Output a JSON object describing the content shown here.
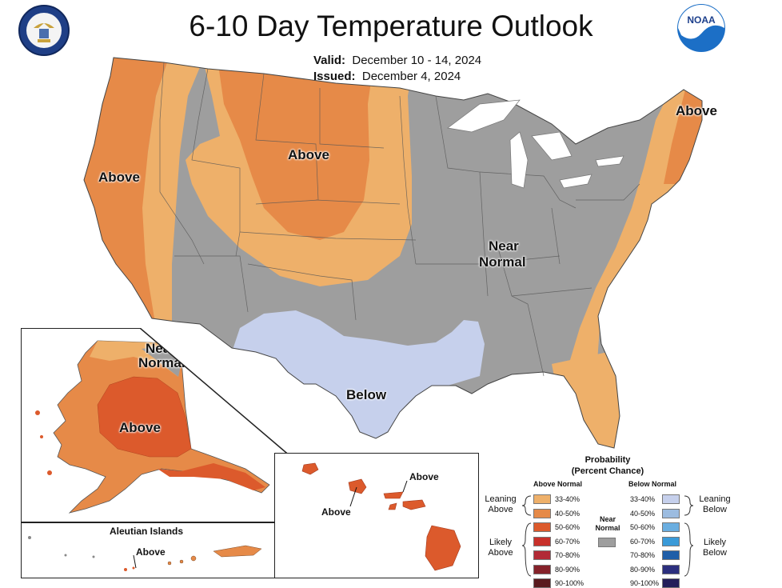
{
  "title": "6-10 Day Temperature Outlook",
  "valid": {
    "label": "Valid:",
    "value": "December 10 - 14, 2024"
  },
  "issued": {
    "label": "Issued:",
    "value": "December 4, 2024"
  },
  "logos": {
    "left": "department-of-commerce-seal",
    "right": "noaa-logo",
    "noaa_text": "NOAA"
  },
  "map_labels": {
    "west": "Above",
    "plains": "Above",
    "northeast": "Above",
    "near_normal_1": "Near",
    "near_normal_2": "Normal",
    "south": "Below",
    "alaska_near_1": "Near",
    "alaska_near_2": "Normal",
    "alaska_above": "Above",
    "aleutian_title": "Aleutian Islands",
    "aleutian_above": "Above",
    "hawaii_above_1": "Above",
    "hawaii_above_2": "Above"
  },
  "legend": {
    "title_1": "Probability",
    "title_2": "(Percent Chance)",
    "above_header": "Above Normal",
    "below_header": "Below Normal",
    "near_header_1": "Near",
    "near_header_2": "Normal",
    "leaning_above_1": "Leaning",
    "leaning_above_2": "Above",
    "likely_above_1": "Likely",
    "likely_above_2": "Above",
    "leaning_below_1": "Leaning",
    "leaning_below_2": "Below",
    "likely_below_1": "Likely",
    "likely_below_2": "Below",
    "above_bins": [
      {
        "label": "33-40%",
        "color": "#eeb06a"
      },
      {
        "label": "40-50%",
        "color": "#e68a48"
      },
      {
        "label": "50-60%",
        "color": "#dc5a2c"
      },
      {
        "label": "60-70%",
        "color": "#c8302a"
      },
      {
        "label": "70-80%",
        "color": "#b22a36"
      },
      {
        "label": "80-90%",
        "color": "#85222a"
      },
      {
        "label": "90-100%",
        "color": "#5a1a1e"
      }
    ],
    "below_bins": [
      {
        "label": "33-40%",
        "color": "#c6d0ec"
      },
      {
        "label": "40-50%",
        "color": "#9cbce0"
      },
      {
        "label": "50-60%",
        "color": "#6aaee0"
      },
      {
        "label": "60-70%",
        "color": "#3a9ad8"
      },
      {
        "label": "70-80%",
        "color": "#1f5ea8"
      },
      {
        "label": "80-90%",
        "color": "#2c2f7e"
      },
      {
        "label": "90-100%",
        "color": "#231d5a"
      }
    ],
    "near_color": "#9e9e9e"
  },
  "colors": {
    "above_33_40": "#eeb06a",
    "above_40_50": "#e68a48",
    "above_50_60": "#dc5a2c",
    "below_33_40": "#c6d0ec",
    "near_normal": "#9e9e9e"
  }
}
